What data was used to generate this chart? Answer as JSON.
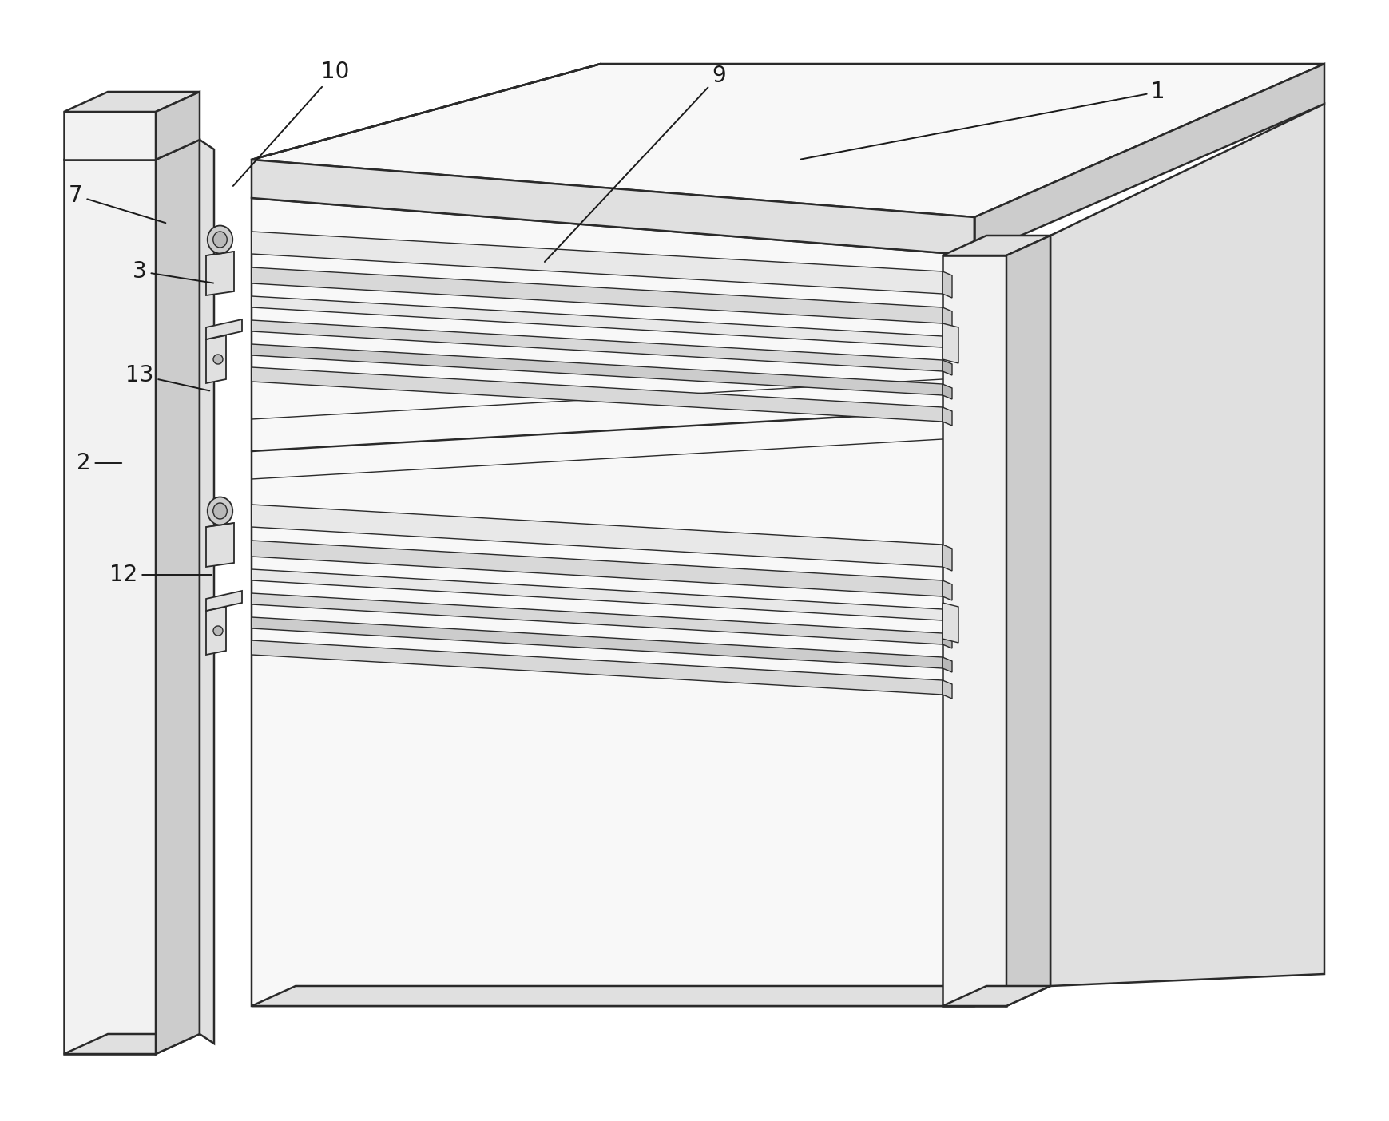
{
  "bg_color": "#ffffff",
  "lc": "#2a2a2a",
  "lw": 1.8,
  "lw_thin": 1.0,
  "lw_med": 1.3,
  "c_white": "#ffffff",
  "c_light": "#f2f2f2",
  "c_lighter": "#f8f8f8",
  "c_med": "#e0e0e0",
  "c_dark": "#cccccc",
  "c_darker": "#b8b8b8",
  "c_shaft": "#d8d8d8",
  "c_shaft2": "#e8e8e8",
  "annotation_fontsize": 20,
  "annotation_color": "#1a1a1a"
}
